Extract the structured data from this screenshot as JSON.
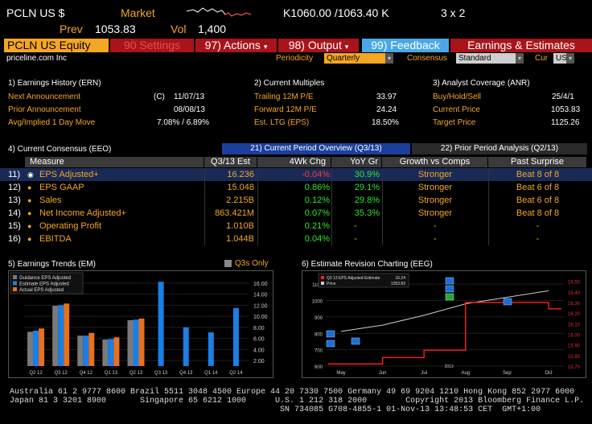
{
  "header": {
    "ticker": "PCLN US $",
    "market_label": "Market",
    "prev_label": "Prev",
    "prev_value": "1053.83",
    "vol_label": "Vol",
    "vol_value": "1,400",
    "bid_ask": "K1060.00 /1063.40 K",
    "size": "3 x 2"
  },
  "menu": {
    "security": "PCLN US Equity",
    "settings": "90 Settings",
    "actions": "97) Actions",
    "output": "98) Output",
    "feedback": "99) Feedback",
    "earnings": "Earnings & Estimates"
  },
  "subheader": {
    "company": "priceline.com Inc",
    "periodicity_label": "Periodicity",
    "periodicity_value": "Quarterly",
    "consensus_label": "Consensus",
    "consensus_value": "Standard",
    "cur_label": "Cur",
    "cur_value": "USD"
  },
  "ern": {
    "title": "1) Earnings History (ERN)",
    "next_label": "Next Announcement",
    "next_flag": "(C)",
    "next_value": "11/07/13",
    "prior_label": "Prior Announcement",
    "prior_value": "08/08/13",
    "move_label": "Avg/Implied 1 Day Move",
    "move_value": "7.08% / 6.89%"
  },
  "multiples": {
    "title": "2) Current Multiples",
    "trailing_label": "Trailing 12M P/E",
    "trailing_value": "33.97",
    "forward_label": "Forward 12M P/E",
    "forward_value": "24.24",
    "ltg_label": "Est. LTG (EPS)",
    "ltg_value": "18.50%"
  },
  "anr": {
    "title": "3) Analyst Coverage (ANR)",
    "bhs_label": "Buy/Hold/Sell",
    "bhs_value": "25/4/1",
    "price_label": "Current Price",
    "price_value": "1053.83",
    "target_label": "Target Price",
    "target_value": "1125.26"
  },
  "eeo": {
    "title": "4) Current Consensus (EEO)",
    "tab_current": "21) Current Period Overview (Q3/13)",
    "tab_prior": "22) Prior Period Analysis (Q2/13)",
    "columns": [
      "Measure",
      "Q3/13 Est",
      "4Wk Chg",
      "YoY Gr",
      "Growth vs Comps",
      "Past Surprise"
    ],
    "rows": [
      {
        "num": "11)",
        "measure": "EPS Adjusted+",
        "est": "16.236",
        "chg": "-0.04%",
        "chg_color": "#ff3b3b",
        "yoy": "30.9%",
        "growth": "Stronger",
        "surprise": "Beat 8 of 8"
      },
      {
        "num": "12)",
        "measure": "EPS GAAP",
        "est": "15.048",
        "chg": "0.86%",
        "chg_color": "#2ee62e",
        "yoy": "29.1%",
        "growth": "Stronger",
        "surprise": "Beat 6 of 8"
      },
      {
        "num": "13)",
        "measure": "Sales",
        "est": "2.215B",
        "chg": "0.12%",
        "chg_color": "#2ee62e",
        "yoy": "29.8%",
        "growth": "Stronger",
        "surprise": "Beat 6 of 8"
      },
      {
        "num": "14)",
        "measure": "Net Income Adjusted+",
        "est": "863.421M",
        "chg": "0.07%",
        "chg_color": "#2ee62e",
        "yoy": "35.3%",
        "growth": "Stronger",
        "surprise": "Beat 8 of 8"
      },
      {
        "num": "15)",
        "measure": "Operating Profit",
        "est": "1.010B",
        "chg": "0.21%",
        "chg_color": "#2ee62e",
        "yoy": "-",
        "growth": "-",
        "surprise": "-"
      },
      {
        "num": "16)",
        "measure": "EBITDA",
        "est": "1.044B",
        "chg": "0.04%",
        "chg_color": "#2ee62e",
        "yoy": "-",
        "growth": "-",
        "surprise": "-"
      }
    ]
  },
  "em": {
    "title": "5) Earnings Trends (EM)",
    "q3s_only": "Q3s Only",
    "legend": [
      "Guidance EPS Adjusted",
      "Estimate EPS Adjusted",
      "Actual EPS Adjusted"
    ],
    "colors": {
      "guidance": "#7a7a7a",
      "estimate": "#1a7fe6",
      "actual": "#e8701e"
    }
  },
  "eeg": {
    "title": "6) Estimate Revision Charting (EEG)",
    "legend_est": "Q3 13 EPS Adjusted Estimate",
    "legend_est_value": "16.24",
    "legend_price": "Price",
    "legend_price_value": "1053.83",
    "xlabels": [
      "May",
      "Jun",
      "Jul",
      "Aug",
      "Sep",
      "Oct"
    ],
    "year_label": "2013",
    "left_ticks": [
      "1100",
      "1000",
      "900",
      "800",
      "700",
      "600"
    ],
    "right_ticks": [
      "16.50",
      "16.40",
      "16.30",
      "16.20",
      "16.10",
      "16.00",
      "15.90",
      "15.80",
      "15.70"
    ]
  },
  "chart_data": [
    {
      "type": "bar",
      "title": "5) Earnings Trends (EM)",
      "categories": [
        "Q2 12",
        "Q3 12",
        "Q4 12",
        "Q1 13",
        "Q2 13",
        "Q3 13",
        "Q4 13",
        "Q1 14",
        "Q2 14"
      ],
      "series": [
        {
          "name": "Guidance EPS Adjusted",
          "values": [
            7.2,
            11.9,
            6.5,
            5.8,
            9.3,
            null,
            null,
            null,
            null
          ]
        },
        {
          "name": "Estimate EPS Adjusted",
          "values": [
            7.4,
            12.0,
            6.5,
            5.9,
            9.4,
            16.24,
            8.0,
            7.1,
            11.5
          ]
        },
        {
          "name": "Actual EPS Adjusted",
          "values": [
            7.8,
            12.3,
            7.0,
            6.2,
            9.6,
            null,
            null,
            null,
            null
          ]
        }
      ],
      "yticks": [
        "16.00",
        "14.00",
        "12.00",
        "10.00",
        "8.00",
        "6.00",
        "4.00",
        "2.00"
      ],
      "ylim": [
        1,
        17
      ]
    },
    {
      "type": "line",
      "title": "6) Estimate Revision Charting (EEG)",
      "x": [
        "May",
        "Jun",
        "Jul",
        "Aug",
        "Sep",
        "Oct"
      ],
      "series": [
        {
          "name": "Price",
          "axis": "left",
          "values": [
            812,
            850,
            910,
            980,
            1020,
            1060
          ],
          "color": "#cccccc"
        },
        {
          "name": "Q3 13 EPS Adjusted Estimate",
          "axis": "right",
          "values": [
            15.72,
            15.78,
            15.85,
            16.3,
            16.3,
            16.24
          ],
          "color": "#ff2020"
        }
      ],
      "ylim_left": [
        600,
        1150
      ],
      "ylim_right": [
        15.7,
        16.55
      ]
    }
  ]
}
